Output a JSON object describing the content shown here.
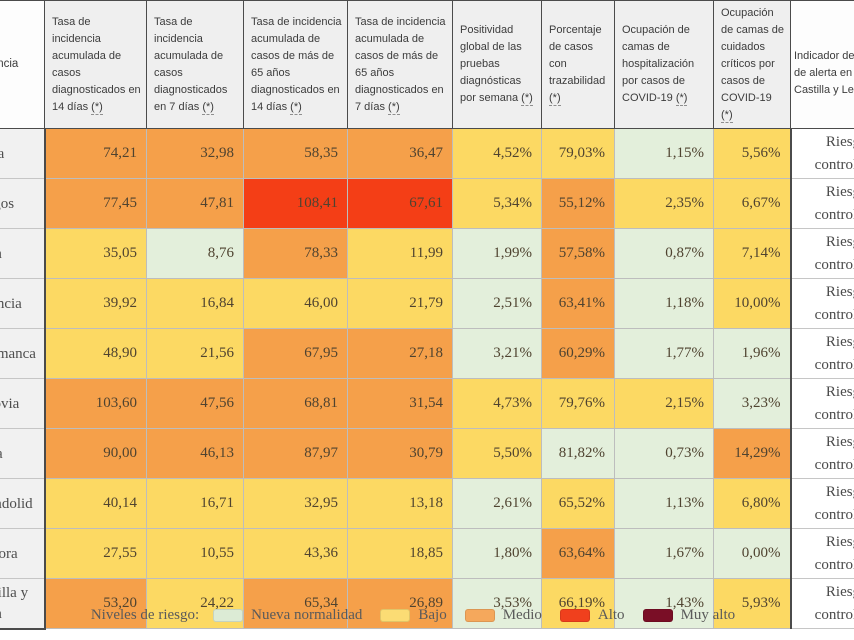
{
  "chart_data": {
    "type": "table",
    "risk_colors": {
      "nueva_normalidad": "#e3efdb",
      "bajo": "#fcd963",
      "medio": "#f5a04a",
      "alto": "#f43e16",
      "muy_alto": "#7a0e26"
    },
    "columns": [
      {
        "label": "Provincia",
        "footnote": ""
      },
      {
        "label": "Tasa de incidencia acumulada de casos diagnosticados en 14 días",
        "footnote": "(*)"
      },
      {
        "label": "Tasa de incidencia acumulada de casos diagnosticados en 7 días",
        "footnote": "(*)"
      },
      {
        "label": "Tasa de incidencia acumulada de casos de más de 65 años diagnosticados en 14 días",
        "footnote": "(*)"
      },
      {
        "label": "Tasa de incidencia acumulada de casos de más de 65 años diagnosticados en 7 días",
        "footnote": "(*)"
      },
      {
        "label": "Positividad global de las pruebas diagnósticas por semana",
        "footnote": "(*)"
      },
      {
        "label": "Porcentaje de casos con trazabilidad",
        "footnote": "(*)"
      },
      {
        "label": "Ocupación de camas de hospitalización por casos de COVID-19",
        "footnote": "(*)"
      },
      {
        "label": "Ocupación de camas de cuidados críticos por casos de COVID-19",
        "footnote": "(*)"
      },
      {
        "label": "Indicador de riesgo\nde alerta en\nCastilla y León",
        "footnote": ""
      }
    ],
    "rows": [
      {
        "label": "Ávila",
        "values": [
          "74,21",
          "32,98",
          "58,35",
          "36,47",
          "4,52%",
          "79,03%",
          "1,15%",
          "5,56%"
        ],
        "levels": [
          "medio",
          "medio",
          "medio",
          "medio",
          "bajo",
          "bajo",
          "nueva_normalidad",
          "bajo"
        ],
        "indicator": "Riesgo controlado"
      },
      {
        "label": "Burgos",
        "values": [
          "77,45",
          "47,81",
          "108,41",
          "67,61",
          "5,34%",
          "55,12%",
          "2,35%",
          "6,67%"
        ],
        "levels": [
          "medio",
          "medio",
          "alto",
          "alto",
          "bajo",
          "medio",
          "bajo",
          "bajo"
        ],
        "indicator": "Riesgo controlado"
      },
      {
        "label": "León",
        "values": [
          "35,05",
          "8,76",
          "78,33",
          "11,99",
          "1,99%",
          "57,58%",
          "0,87%",
          "7,14%"
        ],
        "levels": [
          "bajo",
          "nueva_normalidad",
          "medio",
          "bajo",
          "nueva_normalidad",
          "medio",
          "nueva_normalidad",
          "bajo"
        ],
        "indicator": "Riesgo controlado"
      },
      {
        "label": "Palencia",
        "values": [
          "39,92",
          "16,84",
          "46,00",
          "21,79",
          "2,51%",
          "63,41%",
          "1,18%",
          "10,00%"
        ],
        "levels": [
          "bajo",
          "bajo",
          "bajo",
          "bajo",
          "nueva_normalidad",
          "medio",
          "nueva_normalidad",
          "bajo"
        ],
        "indicator": "Riesgo controlado"
      },
      {
        "label": "Salamanca",
        "values": [
          "48,90",
          "21,56",
          "67,95",
          "27,18",
          "3,21%",
          "60,29%",
          "1,77%",
          "1,96%"
        ],
        "levels": [
          "bajo",
          "bajo",
          "medio",
          "medio",
          "nueva_normalidad",
          "medio",
          "nueva_normalidad",
          "nueva_normalidad"
        ],
        "indicator": "Riesgo controlado"
      },
      {
        "label": "Segovia",
        "values": [
          "103,60",
          "47,56",
          "68,81",
          "31,54",
          "4,73%",
          "79,76%",
          "2,15%",
          "3,23%"
        ],
        "levels": [
          "medio",
          "medio",
          "medio",
          "medio",
          "bajo",
          "bajo",
          "bajo",
          "nueva_normalidad"
        ],
        "indicator": "Riesgo controlado"
      },
      {
        "label": "Soria",
        "values": [
          "90,00",
          "46,13",
          "87,97",
          "30,79",
          "5,50%",
          "81,82%",
          "0,73%",
          "14,29%"
        ],
        "levels": [
          "medio",
          "medio",
          "medio",
          "medio",
          "bajo",
          "nueva_normalidad",
          "nueva_normalidad",
          "medio"
        ],
        "indicator": "Riesgo controlado"
      },
      {
        "label": "Valladolid",
        "values": [
          "40,14",
          "16,71",
          "32,95",
          "13,18",
          "2,61%",
          "65,52%",
          "1,13%",
          "6,80%"
        ],
        "levels": [
          "bajo",
          "bajo",
          "bajo",
          "bajo",
          "nueva_normalidad",
          "bajo",
          "nueva_normalidad",
          "bajo"
        ],
        "indicator": "Riesgo controlado"
      },
      {
        "label": "Zamora",
        "values": [
          "27,55",
          "10,55",
          "43,36",
          "18,85",
          "1,80%",
          "63,64%",
          "1,67%",
          "0,00%"
        ],
        "levels": [
          "bajo",
          "bajo",
          "bajo",
          "bajo",
          "nueva_normalidad",
          "medio",
          "nueva_normalidad",
          "nueva_normalidad"
        ],
        "indicator": "Riesgo controlado"
      },
      {
        "label": "Castilla y León",
        "values": [
          "53,20",
          "24,22",
          "65,34",
          "26,89",
          "3,53%",
          "66,19%",
          "1,43%",
          "5,93%"
        ],
        "levels": [
          "medio",
          "bajo",
          "medio",
          "medio",
          "nueva_normalidad",
          "bajo",
          "nueva_normalidad",
          "bajo"
        ],
        "indicator": "Riesgo controlado"
      }
    ],
    "legend": {
      "title": "Niveles de riesgo:",
      "items": [
        {
          "label": "Nueva normalidad",
          "level": "nueva_normalidad",
          "swatch": "#dcebd5"
        },
        {
          "label": "Bajo",
          "level": "bajo",
          "swatch": "#fbdc74"
        },
        {
          "label": "Medio",
          "level": "medio",
          "swatch": "#f5a85c"
        },
        {
          "label": "Alto",
          "level": "alto",
          "swatch": "#f0401d"
        },
        {
          "label": "Muy alto",
          "level": "muy_alto",
          "swatch": "#7a0e26"
        }
      ]
    }
  }
}
